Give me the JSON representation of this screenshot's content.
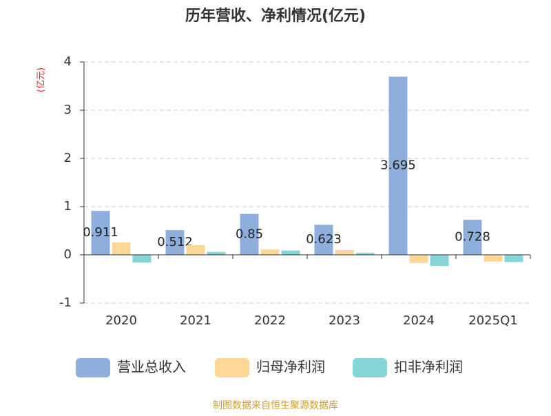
{
  "chart_data": {
    "type": "bar",
    "title": "历年营收、净利情况(亿元)",
    "y_label": "(亿元)",
    "source": "制图数据来自恒生聚源数据库",
    "categories": [
      "2020",
      "2021",
      "2022",
      "2023",
      "2024",
      "2025Q1"
    ],
    "series": [
      {
        "name": "营业总收入",
        "color": "#8eaedb",
        "values": [
          0.911,
          0.512,
          0.85,
          0.623,
          3.695,
          0.728
        ],
        "show_labels": true
      },
      {
        "name": "归母净利润",
        "color": "#fdd797",
        "values": [
          0.26,
          0.2,
          0.11,
          0.1,
          -0.17,
          -0.14
        ],
        "show_labels": false
      },
      {
        "name": "扣非净利润",
        "color": "#85d5d8",
        "values": [
          -0.16,
          0.06,
          0.09,
          0.04,
          -0.23,
          -0.15
        ],
        "show_labels": false
      }
    ],
    "ylim": [
      -1,
      4
    ],
    "yticks": [
      -1,
      0,
      1,
      2,
      3,
      4
    ],
    "grid": true,
    "legend": "bottom"
  }
}
